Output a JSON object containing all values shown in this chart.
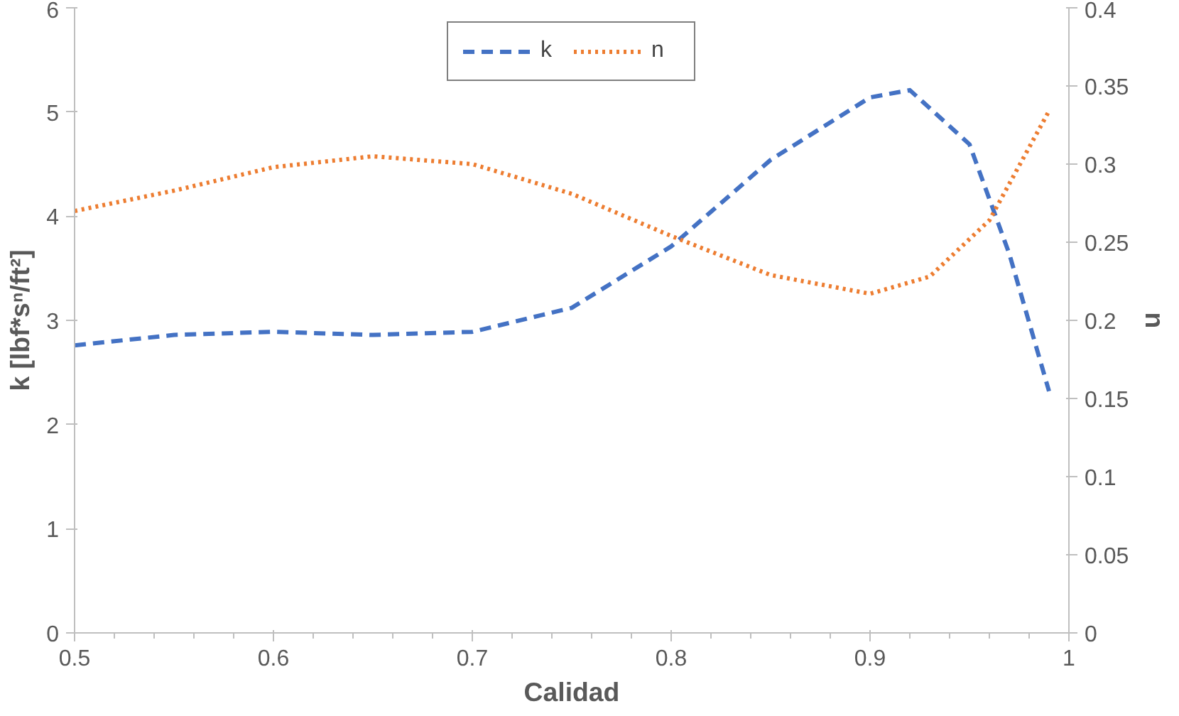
{
  "chart_data": {
    "type": "line",
    "xlabel": "Calidad",
    "ylabel": "k [lbf*sⁿ/ft²]",
    "y2label": "n",
    "xlim": [
      0.5,
      1
    ],
    "xticks": [
      0.5,
      0.6,
      0.7,
      0.8,
      0.9,
      1
    ],
    "ylim": [
      0,
      6
    ],
    "yticks": [
      0,
      1,
      2,
      3,
      4,
      5,
      6
    ],
    "y2lim": [
      0,
      0.4
    ],
    "y2ticks": [
      0,
      0.05,
      0.1,
      0.15,
      0.2,
      0.25,
      0.3,
      0.35,
      0.4
    ],
    "grid": false,
    "legend": "top",
    "marker": "none",
    "x": [
      0.5,
      0.55,
      0.6,
      0.65,
      0.7,
      0.75,
      0.8,
      0.85,
      0.9,
      0.92,
      0.95,
      0.97,
      0.99
    ],
    "series": [
      {
        "name": "k",
        "color": "#4472c4",
        "line_style": "dashed",
        "values": [
          2.76,
          2.86,
          2.89,
          2.86,
          2.89,
          3.12,
          3.71,
          4.54,
          5.14,
          5.21,
          4.69,
          3.64,
          2.32
        ]
      },
      {
        "name": "n",
        "color": "#ed7d31",
        "line_style": "dotted",
        "axis": "y2",
        "x": [
          0.5,
          0.55,
          0.6,
          0.65,
          0.7,
          0.75,
          0.8,
          0.85,
          0.9,
          0.93,
          0.96,
          0.99
        ],
        "values": [
          0.27,
          0.283,
          0.298,
          0.305,
          0.3,
          0.281,
          0.254,
          0.229,
          0.217,
          0.228,
          0.264,
          0.334
        ]
      }
    ]
  }
}
